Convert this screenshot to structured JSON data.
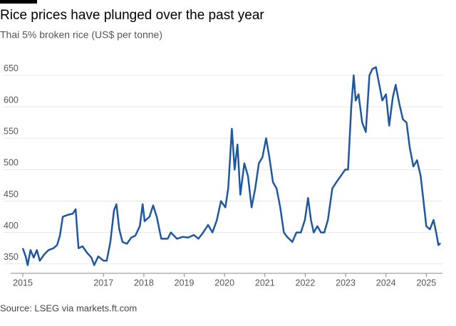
{
  "chart_data": {
    "type": "line",
    "title": "Rice prices have plunged over the past year",
    "subtitle": "Thai 5% broken rice (US$ per tonne)",
    "source": "Source: LSEG via markets.ft.com",
    "x": [
      2015.0,
      2015.07,
      2015.12,
      2015.19,
      2015.27,
      2015.35,
      2015.42,
      2015.53,
      2015.64,
      2015.76,
      2015.85,
      2015.92,
      2015.99,
      2016.11,
      2016.24,
      2016.31,
      2016.34,
      2016.38,
      2016.48,
      2016.59,
      2016.7,
      2016.77,
      2016.87,
      2017.0,
      2017.08,
      2017.17,
      2017.26,
      2017.32,
      2017.39,
      2017.47,
      2017.58,
      2017.69,
      2017.79,
      2017.9,
      2017.97,
      2018.02,
      2018.14,
      2018.23,
      2018.32,
      2018.43,
      2018.59,
      2018.67,
      2018.82,
      2018.96,
      2019.1,
      2019.24,
      2019.35,
      2019.47,
      2019.59,
      2019.7,
      2019.81,
      2019.91,
      2020.02,
      2020.09,
      2020.18,
      2020.25,
      2020.32,
      2020.39,
      2020.49,
      2020.58,
      2020.67,
      2020.76,
      2020.85,
      2020.94,
      2021.03,
      2021.11,
      2021.2,
      2021.29,
      2021.38,
      2021.47,
      2021.55,
      2021.68,
      2021.78,
      2021.89,
      2021.99,
      2022.07,
      2022.14,
      2022.21,
      2022.3,
      2022.39,
      2022.47,
      2022.56,
      2022.67,
      2022.77,
      2022.88,
      2022.99,
      2023.06,
      2023.14,
      2023.2,
      2023.25,
      2023.32,
      2023.41,
      2023.5,
      2023.59,
      2023.66,
      2023.75,
      2023.82,
      2023.91,
      2024.0,
      2024.08,
      2024.17,
      2024.24,
      2024.33,
      2024.42,
      2024.51,
      2024.59,
      2024.68,
      2024.77,
      2024.86,
      2024.93,
      2025.0,
      2025.09,
      2025.18,
      2025.25,
      2025.3,
      2025.35
    ],
    "series": [
      {
        "name": "Thai 5% broken rice",
        "color": "#1f57a0",
        "values": [
          375,
          362,
          348,
          372,
          360,
          372,
          355,
          365,
          372,
          375,
          380,
          395,
          425,
          428,
          430,
          437,
          410,
          375,
          378,
          368,
          360,
          348,
          362,
          355,
          355,
          385,
          435,
          445,
          405,
          385,
          382,
          392,
          395,
          410,
          445,
          418,
          425,
          443,
          425,
          390,
          390,
          400,
          390,
          393,
          392,
          396,
          390,
          400,
          412,
          400,
          420,
          450,
          440,
          470,
          565,
          500,
          540,
          460,
          510,
          490,
          440,
          470,
          510,
          520,
          550,
          520,
          480,
          470,
          440,
          400,
          393,
          385,
          400,
          400,
          420,
          455,
          420,
          400,
          410,
          400,
          400,
          420,
          470,
          480,
          490,
          500,
          500,
          600,
          650,
          610,
          620,
          575,
          560,
          650,
          660,
          663,
          640,
          610,
          620,
          570,
          615,
          635,
          605,
          580,
          575,
          535,
          505,
          515,
          490,
          450,
          410,
          405,
          420,
          398,
          380,
          383
        ]
      }
    ],
    "xlim": [
      2015,
      2025.4
    ],
    "xticks": [
      2015,
      2017,
      2018,
      2019,
      2020,
      2021,
      2022,
      2023,
      2024,
      2025
    ],
    "ylim": [
      335,
      668
    ],
    "yticks": [
      350,
      400,
      450,
      500,
      550,
      600,
      650
    ],
    "grid": true
  }
}
